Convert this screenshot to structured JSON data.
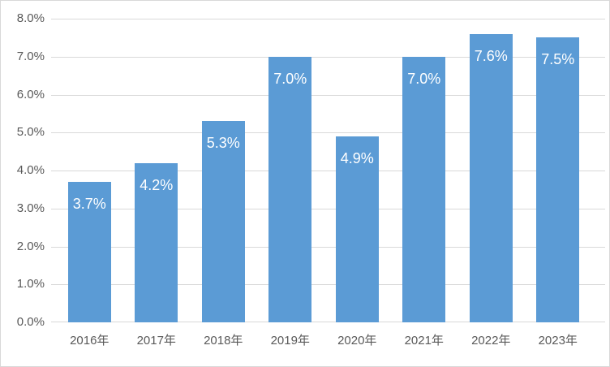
{
  "chart_data": {
    "type": "bar",
    "title": "",
    "categories": [
      "2016年",
      "2017年",
      "2018年",
      "2019年",
      "2020年",
      "2021年",
      "2022年",
      "2023年"
    ],
    "values": [
      3.7,
      4.2,
      5.3,
      7.0,
      4.9,
      7.0,
      7.6,
      7.5
    ],
    "data_labels": [
      "3.7%",
      "4.2%",
      "5.3%",
      "7.0%",
      "4.9%",
      "7.0%",
      "7.6%",
      "7.5%"
    ],
    "y_ticks": [
      "8.0%",
      "7.0%",
      "6.0%",
      "5.0%",
      "4.0%",
      "3.0%",
      "2.0%",
      "1.0%",
      "0.0%"
    ],
    "xlabel": "",
    "ylabel": "",
    "ylim": [
      0,
      8
    ],
    "grid": true,
    "legend": false,
    "colors": {
      "bar": "#5b9bd5",
      "data_label": "#ffffff",
      "axis_text": "#595959",
      "gridline": "#d9d9d9",
      "border": "#d9d9d9",
      "background": "#ffffff"
    }
  }
}
